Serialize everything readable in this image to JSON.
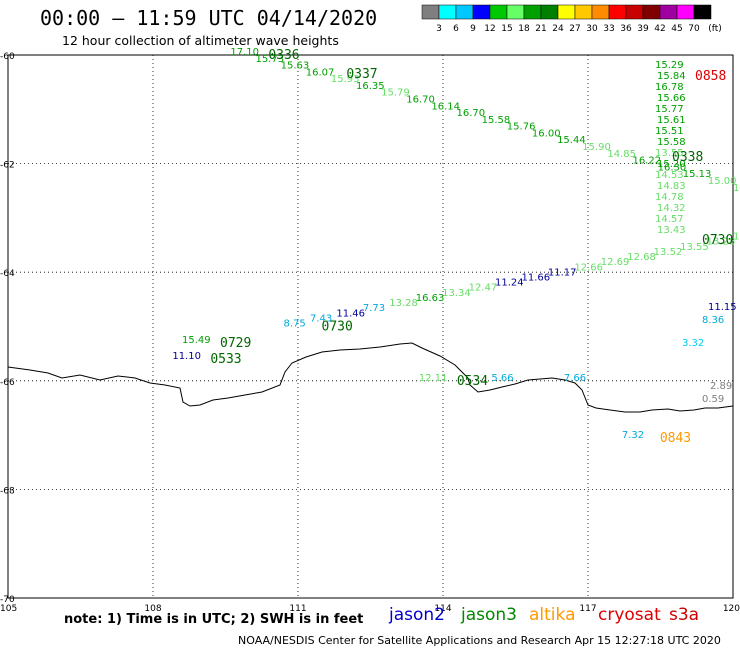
{
  "title": "00:00 – 11:59 UTC 04/14/2020",
  "subtitle": "12 hour collection of altimeter wave heights",
  "note": "note:  1) Time is in UTC;  2) SWH is in feet",
  "credit": "NOAA/NESDIS Center for Satellite Applications and Research    Apr 15 12:27:18 UTC 2020",
  "legend": {
    "unit": "(ft)",
    "labels": [
      "3",
      "6",
      "9",
      "12",
      "15",
      "18",
      "21",
      "24",
      "27",
      "30",
      "33",
      "36",
      "39",
      "42",
      "45",
      "70"
    ],
    "colors": [
      "#7f7f7f",
      "#00ffff",
      "#00c8ff",
      "#0000ff",
      "#00c800",
      "#66ff66",
      "#00a000",
      "#008000",
      "#ffff00",
      "#ffc800",
      "#ff8c00",
      "#ff0000",
      "#c80000",
      "#800000",
      "#a000a0",
      "#ff00ff",
      "#000000"
    ]
  },
  "satellites": [
    {
      "name": "jason2",
      "color": "#0000cc"
    },
    {
      "name": "jason3",
      "color": "#008800"
    },
    {
      "name": "altika",
      "color": "#ff9900"
    },
    {
      "name": "cryosat",
      "color": "#dd0000"
    },
    {
      "name": "s3a",
      "color": "#cc0000"
    }
  ],
  "axes": {
    "lon_labels": [
      "105",
      "108",
      "111",
      "114",
      "117",
      "120"
    ],
    "lat_labels": [
      "-60",
      "-62",
      "-64",
      "-66",
      "-68",
      "-70"
    ]
  },
  "tracks": [
    {
      "time": "0336",
      "time_color": "#006600",
      "lon0": 109.6,
      "lat0": -60.0,
      "lon1": 120.0,
      "lat1": -62.5,
      "points": [
        {
          "v": "17.10",
          "c": "#00a000"
        },
        {
          "v": "15.73",
          "c": "#00a000"
        },
        {
          "v": "15.63",
          "c": "#00a000"
        },
        {
          "v": "16.07",
          "c": "#00a000"
        },
        {
          "v": "15.93",
          "c": "#66dd66"
        },
        {
          "v": "16.35",
          "c": "#00a000"
        },
        {
          "v": "15.79",
          "c": "#66dd66"
        },
        {
          "v": "16.70",
          "c": "#00a000"
        },
        {
          "v": "16.14",
          "c": "#00a000"
        },
        {
          "v": "16.70",
          "c": "#00a000"
        },
        {
          "v": "15.58",
          "c": "#00a000"
        },
        {
          "v": "15.76",
          "c": "#00a000"
        },
        {
          "v": "16.00",
          "c": "#00a000"
        },
        {
          "v": "15.44",
          "c": "#00a000"
        },
        {
          "v": "15.90",
          "c": "#66dd66"
        },
        {
          "v": "14.85",
          "c": "#66dd66"
        },
        {
          "v": "16.22",
          "c": "#00a000"
        },
        {
          "v": "16.30",
          "c": "#00a000"
        },
        {
          "v": "15.13",
          "c": "#00a000"
        },
        {
          "v": "15.00",
          "c": "#66dd66"
        },
        {
          "v": "14.56",
          "c": "#66dd66"
        }
      ]
    },
    {
      "time": "0337",
      "time_color": "#006600",
      "lon0": 112.0,
      "lat0": -60.35,
      "lon1": 112.0,
      "lat1": -60.35,
      "points": []
    },
    {
      "time": "0729",
      "time_color": "#006600",
      "lon0": 108.6,
      "lat0": -65.3,
      "lon1": 108.6,
      "lat1": -65.3,
      "points": [
        {
          "v": "15.49",
          "c": "#00a000"
        }
      ]
    },
    {
      "time": "0533",
      "time_color": "#006600",
      "lon0": 108.4,
      "lat0": -65.6,
      "lon1": 108.4,
      "lat1": -65.6,
      "points": [
        {
          "v": "11.10",
          "c": "#000099"
        }
      ]
    },
    {
      "time": "0730",
      "time_color": "#006600",
      "lon0": 110.7,
      "lat0": -65.0,
      "lon1": 120.0,
      "lat1": -63.4,
      "points": [
        {
          "v": "8.75",
          "c": "#00aadd"
        },
        {
          "v": "7.43",
          "c": "#00aadd"
        },
        {
          "v": "11.46",
          "c": "#000099"
        },
        {
          "v": "7.73",
          "c": "#00aadd"
        },
        {
          "v": "13.28",
          "c": "#66dd66"
        },
        {
          "v": "16.63",
          "c": "#00a000"
        },
        {
          "v": "13.34",
          "c": "#66dd66"
        },
        {
          "v": "12.47",
          "c": "#66dd66"
        },
        {
          "v": "11.24",
          "c": "#000099"
        },
        {
          "v": "11.66",
          "c": "#000099"
        },
        {
          "v": "11.17",
          "c": "#000099"
        },
        {
          "v": "12.66",
          "c": "#66dd66"
        },
        {
          "v": "12.69",
          "c": "#66dd66"
        },
        {
          "v": "12.68",
          "c": "#66dd66"
        },
        {
          "v": "13.52",
          "c": "#66dd66"
        },
        {
          "v": "13.55",
          "c": "#66dd66"
        },
        {
          "v": "13.28",
          "c": "#66dd66"
        },
        {
          "v": "13.11",
          "c": "#66dd66"
        }
      ]
    },
    {
      "time": "0534",
      "time_color": "#006600",
      "lon0": 113.5,
      "lat0": -66.0,
      "lon1": 116.5,
      "lat1": -66.0,
      "points": [
        {
          "v": "12.11",
          "c": "#66dd66"
        },
        {
          "v": "5.66",
          "c": "#00aadd"
        },
        {
          "v": "7.66",
          "c": "#00aadd"
        }
      ]
    },
    {
      "time": "0843",
      "time_color": "#ff9900",
      "lon0": 117.7,
      "lat0": -67.05,
      "lon1": 117.7,
      "lat1": -67.05,
      "points": [
        {
          "v": "7.32",
          "c": "#00aadd"
        }
      ]
    }
  ],
  "tracks_vertical": [
    {
      "time": "0858",
      "time_color": "#dd0000",
      "points": [
        {
          "v": "15.29",
          "c": "#00a000"
        },
        {
          "v": "15.84",
          "c": "#00a000"
        },
        {
          "v": "16.78",
          "c": "#00a000"
        },
        {
          "v": "15.66",
          "c": "#00a000"
        },
        {
          "v": "15.77",
          "c": "#00a000"
        },
        {
          "v": "15.61",
          "c": "#00a000"
        },
        {
          "v": "15.51",
          "c": "#00a000"
        },
        {
          "v": "15.58",
          "c": "#00a000"
        },
        {
          "v": "13.55",
          "c": "#66dd66"
        },
        {
          "v": "15.20",
          "c": "#00a000"
        },
        {
          "v": "14.53",
          "c": "#66dd66"
        },
        {
          "v": "14.83",
          "c": "#66dd66"
        },
        {
          "v": "14.78",
          "c": "#66dd66"
        },
        {
          "v": "14.32",
          "c": "#66dd66"
        },
        {
          "v": "14.57",
          "c": "#66dd66"
        },
        {
          "v": "13.43",
          "c": "#66dd66"
        }
      ]
    },
    {
      "time": "0338",
      "time_color": "#006600",
      "points": []
    },
    {
      "time": "0730",
      "time_color": "#006600",
      "points": []
    }
  ],
  "right_column": [
    {
      "v": "11.15",
      "c": "#000099"
    },
    {
      "v": "8.36",
      "c": "#00aadd"
    },
    {
      "v": "3.32",
      "c": "#00ccee"
    },
    {
      "v": "2.89",
      "c": "#7f7f7f"
    },
    {
      "v": "0.59",
      "c": "#7f7f7f"
    }
  ]
}
